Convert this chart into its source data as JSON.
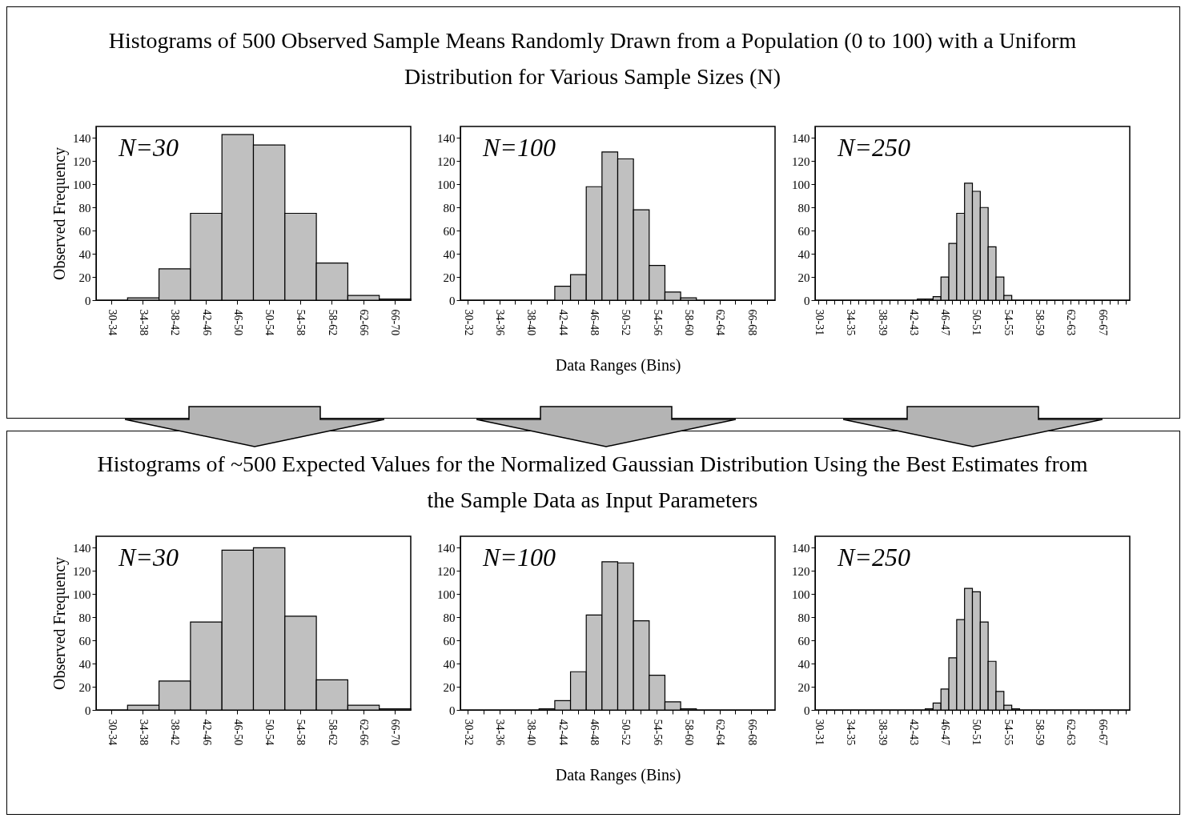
{
  "chart_data": [
    {
      "type": "bar",
      "title": "Histograms of 500 Observed Sample Means Randomly Drawn from a Population (0 to 100) with a Uniform Distribution for Various Sample Sizes (N)",
      "ylabel": "Observed Frequency",
      "annotations": [
        "N=30"
      ],
      "categories": [
        "30-34",
        "34-38",
        "38-42",
        "42-46",
        "46-50",
        "50-54",
        "54-58",
        "58-62",
        "62-66",
        "66-70"
      ],
      "values": [
        0,
        2,
        27,
        75,
        143,
        134,
        75,
        32,
        4,
        1
      ],
      "color": "#c0c0c0",
      "ylim": [
        0,
        150
      ],
      "yticks": [
        0,
        20,
        40,
        60,
        80,
        100,
        120,
        140
      ],
      "grid": false
    },
    {
      "type": "bar",
      "xlabel": "Data Ranges (Bins)",
      "annotations": [
        "N=100"
      ],
      "categories": [
        "30-32",
        null,
        "34-36",
        null,
        "38-40",
        null,
        "42-44",
        null,
        "46-48",
        null,
        "50-52",
        null,
        "54-56",
        null,
        "58-60",
        null,
        "62-64",
        null,
        "66-68",
        null
      ],
      "values": [
        0,
        0,
        0,
        0,
        0,
        0,
        12,
        22,
        98,
        128,
        122,
        78,
        30,
        7,
        2,
        0,
        0,
        0,
        0,
        0
      ],
      "color": "#c0c0c0",
      "ylim": [
        0,
        150
      ],
      "yticks": [
        0,
        20,
        40,
        60,
        80,
        100,
        120,
        140
      ],
      "grid": false
    },
    {
      "type": "bar",
      "annotations": [
        "N=250"
      ],
      "categories": [
        "30-31",
        null,
        null,
        null,
        "34-35",
        null,
        null,
        null,
        "38-39",
        null,
        null,
        null,
        "42-43",
        null,
        null,
        null,
        "46-47",
        null,
        null,
        null,
        "50-51",
        null,
        null,
        null,
        "54-55",
        null,
        null,
        null,
        "58-59",
        null,
        null,
        null,
        "62-63",
        null,
        null,
        null,
        "66-67",
        null,
        null,
        null
      ],
      "values": [
        0,
        0,
        0,
        0,
        0,
        0,
        0,
        0,
        0,
        0,
        0,
        0,
        0,
        1,
        1,
        3,
        20,
        49,
        75,
        101,
        94,
        80,
        46,
        20,
        4,
        0,
        0,
        0,
        0,
        0,
        0,
        0,
        0,
        0,
        0,
        0,
        0,
        0,
        0,
        0
      ],
      "color": "#c0c0c0",
      "ylim": [
        0,
        150
      ],
      "yticks": [
        0,
        20,
        40,
        60,
        80,
        100,
        120,
        140
      ],
      "grid": false
    },
    {
      "type": "bar",
      "title": "Histograms of ~500 Expected Values for the Normalized Gaussian Distribution Using the Best Estimates from the Sample Data as Input Parameters",
      "ylabel": "Observed Frequency",
      "annotations": [
        "N=30"
      ],
      "categories": [
        "30-34",
        "34-38",
        "38-42",
        "42-46",
        "46-50",
        "50-54",
        "54-58",
        "58-62",
        "62-66",
        "66-70"
      ],
      "values": [
        0,
        4,
        25,
        76,
        138,
        140,
        81,
        26,
        4,
        1
      ],
      "color": "#c0c0c0",
      "ylim": [
        0,
        150
      ],
      "yticks": [
        0,
        20,
        40,
        60,
        80,
        100,
        120,
        140
      ],
      "grid": false
    },
    {
      "type": "bar",
      "xlabel": "Data Ranges (Bins)",
      "annotations": [
        "N=100"
      ],
      "categories": [
        "30-32",
        null,
        "34-36",
        null,
        "38-40",
        null,
        "42-44",
        null,
        "46-48",
        null,
        "50-52",
        null,
        "54-56",
        null,
        "58-60",
        null,
        "62-64",
        null,
        "66-68",
        null
      ],
      "values": [
        0,
        0,
        0,
        0,
        0,
        1,
        8,
        33,
        82,
        128,
        127,
        77,
        30,
        7,
        1,
        0,
        0,
        0,
        0,
        0
      ],
      "color": "#c0c0c0",
      "ylim": [
        0,
        150
      ],
      "yticks": [
        0,
        20,
        40,
        60,
        80,
        100,
        120,
        140
      ],
      "grid": false
    },
    {
      "type": "bar",
      "annotations": [
        "N=250"
      ],
      "categories": [
        "30-31",
        null,
        null,
        null,
        "34-35",
        null,
        null,
        null,
        "38-39",
        null,
        null,
        null,
        "42-43",
        null,
        null,
        null,
        "46-47",
        null,
        null,
        null,
        "50-51",
        null,
        null,
        null,
        "54-55",
        null,
        null,
        null,
        "58-59",
        null,
        null,
        null,
        "62-63",
        null,
        null,
        null,
        "66-67",
        null,
        null,
        null
      ],
      "values": [
        0,
        0,
        0,
        0,
        0,
        0,
        0,
        0,
        0,
        0,
        0,
        0,
        0,
        0,
        1,
        6,
        18,
        45,
        78,
        105,
        102,
        76,
        42,
        16,
        4,
        1,
        0,
        0,
        0,
        0,
        0,
        0,
        0,
        0,
        0,
        0,
        0,
        0,
        0,
        0
      ],
      "color": "#c0c0c0",
      "ylim": [
        0,
        150
      ],
      "yticks": [
        0,
        20,
        40,
        60,
        80,
        100,
        120,
        140
      ],
      "grid": false
    }
  ]
}
